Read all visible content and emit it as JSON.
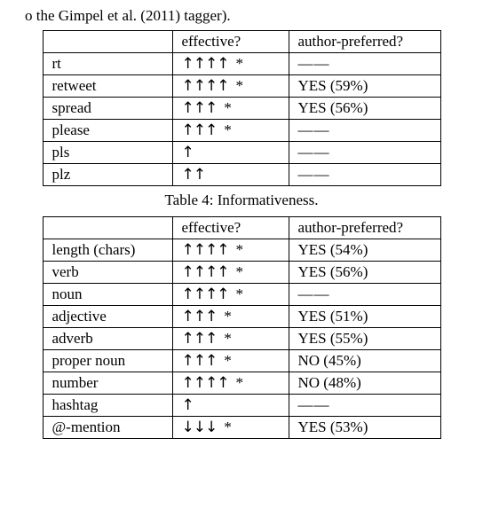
{
  "fragment_text": "o the Gimpel et al. (2011) tagger).",
  "table1": {
    "headers": {
      "blank": "",
      "col2": "effective?",
      "col3": "author-preferred?"
    },
    "rows": [
      {
        "term": "rt",
        "arrows": "↑↑↑↑",
        "sig": "*",
        "pref": "——"
      },
      {
        "term": "retweet",
        "arrows": "↑↑↑↑",
        "sig": "*",
        "pref": "YES (59%)"
      },
      {
        "term": "spread",
        "arrows": "↑↑↑",
        "sig": "*",
        "pref": "YES (56%)"
      },
      {
        "term": "please",
        "arrows": "↑↑↑",
        "sig": "*",
        "pref": "——"
      },
      {
        "term": "pls",
        "arrows": "↑",
        "sig": "",
        "pref": "——"
      },
      {
        "term": "plz",
        "arrows": "↑↑",
        "sig": "",
        "pref": "——"
      }
    ]
  },
  "caption": "Table 4: Informativeness.",
  "table2": {
    "headers": {
      "blank": "",
      "col2": "effective?",
      "col3": "author-preferred?"
    },
    "rows": [
      {
        "term": "length (chars)",
        "arrows": "↑↑↑↑",
        "sig": "*",
        "pref": "YES (54%)"
      },
      {
        "term": "verb",
        "arrows": "↑↑↑↑",
        "sig": "*",
        "pref": "YES (56%)"
      },
      {
        "term": "noun",
        "arrows": "↑↑↑↑",
        "sig": "*",
        "pref": "——"
      },
      {
        "term": "adjective",
        "arrows": "↑↑↑",
        "sig": "*",
        "pref": "YES (51%)"
      },
      {
        "term": "adverb",
        "arrows": "↑↑↑",
        "sig": "*",
        "pref": "YES (55%)"
      },
      {
        "term": "proper noun",
        "arrows": "↑↑↑",
        "sig": "*",
        "pref": "NO   (45%)"
      },
      {
        "term": "number",
        "arrows": "↑↑↑↑",
        "sig": "*",
        "pref": "NO   (48%)"
      },
      {
        "term": "hashtag",
        "arrows": "↑",
        "sig": "",
        "pref": "——"
      },
      {
        "term": "@-mention",
        "arrows": "↓↓↓",
        "sig": "*",
        "pref": "YES (53%)"
      }
    ]
  }
}
